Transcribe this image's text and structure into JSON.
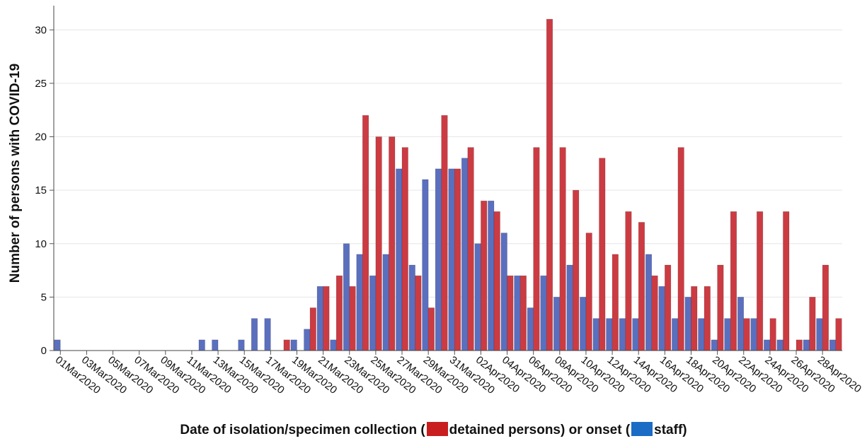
{
  "chart_data": {
    "type": "bar",
    "ylabel": "Number of persons with COVID-19",
    "xlabel_parts": {
      "prefix": "Date of isolation/specimen collection (",
      "detained_label": "detained persons) or onset (",
      "staff_label": "staff)"
    },
    "ylim": [
      0,
      32
    ],
    "yticks": [
      0,
      5,
      10,
      15,
      20,
      25,
      30
    ],
    "grid": "horizontal",
    "legend": "in x-axis title",
    "dates": [
      "01Mar2020",
      "02Mar2020",
      "03Mar2020",
      "04Mar2020",
      "05Mar2020",
      "06Mar2020",
      "07Mar2020",
      "08Mar2020",
      "09Mar2020",
      "10Mar2020",
      "11Mar2020",
      "12Mar2020",
      "13Mar2020",
      "14Mar2020",
      "15Mar2020",
      "16Mar2020",
      "17Mar2020",
      "18Mar2020",
      "19Mar2020",
      "20Mar2020",
      "21Mar2020",
      "22Mar2020",
      "23Mar2020",
      "24Mar2020",
      "25Mar2020",
      "26Mar2020",
      "27Mar2020",
      "28Mar2020",
      "29Mar2020",
      "30Mar2020",
      "31Mar2020",
      "01Apr2020",
      "02Apr2020",
      "03Apr2020",
      "04Apr2020",
      "05Apr2020",
      "06Apr2020",
      "07Apr2020",
      "08Apr2020",
      "09Apr2020",
      "10Apr2020",
      "11Apr2020",
      "12Apr2020",
      "13Apr2020",
      "14Apr2020",
      "15Apr2020",
      "16Apr2020",
      "17Apr2020",
      "18Apr2020",
      "19Apr2020",
      "20Apr2020",
      "21Apr2020",
      "22Apr2020",
      "23Apr2020",
      "24Apr2020",
      "25Apr2020",
      "26Apr2020",
      "27Apr2020",
      "28Apr2020",
      "29Apr2020"
    ],
    "tick_labels": [
      "01Mar2020",
      "03Mar2020",
      "05Mar2020",
      "07Mar2020",
      "09Mar2020",
      "11Mar2020",
      "13Mar2020",
      "15Mar2020",
      "17Mar2020",
      "19Mar2020",
      "21Mar2020",
      "23Mar2020",
      "25Mar2020",
      "27Mar2020",
      "29Mar2020",
      "31Mar2020",
      "02Apr2020",
      "04Apr2020",
      "06Apr2020",
      "08Apr2020",
      "10Apr2020",
      "12Apr2020",
      "14Apr2020",
      "16Apr2020",
      "18Apr2020",
      "20Apr2020",
      "22Apr2020",
      "24Apr2020",
      "26Apr2020",
      "28Apr2020"
    ],
    "series": [
      {
        "key": "staff",
        "color": "#5b6fbf",
        "values": [
          1,
          0,
          0,
          0,
          0,
          0,
          0,
          0,
          0,
          0,
          0,
          1,
          1,
          0,
          1,
          3,
          3,
          0,
          1,
          2,
          6,
          1,
          10,
          9,
          7,
          9,
          17,
          8,
          16,
          17,
          17,
          18,
          10,
          14,
          11,
          7,
          4,
          7,
          5,
          8,
          5,
          3,
          3,
          3,
          3,
          9,
          6,
          3,
          5,
          3,
          1,
          3,
          5,
          3,
          1,
          1,
          0,
          1,
          3,
          1
        ]
      },
      {
        "key": "detained",
        "color": "#cc3b42",
        "values": [
          0,
          0,
          0,
          0,
          0,
          0,
          0,
          0,
          0,
          0,
          0,
          0,
          0,
          0,
          0,
          0,
          0,
          1,
          0,
          4,
          6,
          7,
          6,
          22,
          20,
          20,
          19,
          7,
          4,
          22,
          17,
          19,
          14,
          13,
          7,
          7,
          19,
          31,
          19,
          15,
          11,
          18,
          9,
          13,
          12,
          7,
          8,
          19,
          6,
          6,
          8,
          13,
          3,
          13,
          3,
          13,
          1,
          5,
          8,
          3
        ]
      }
    ],
    "legend_colors": {
      "detained": "#c81e1e",
      "staff": "#1a6cc4"
    }
  }
}
